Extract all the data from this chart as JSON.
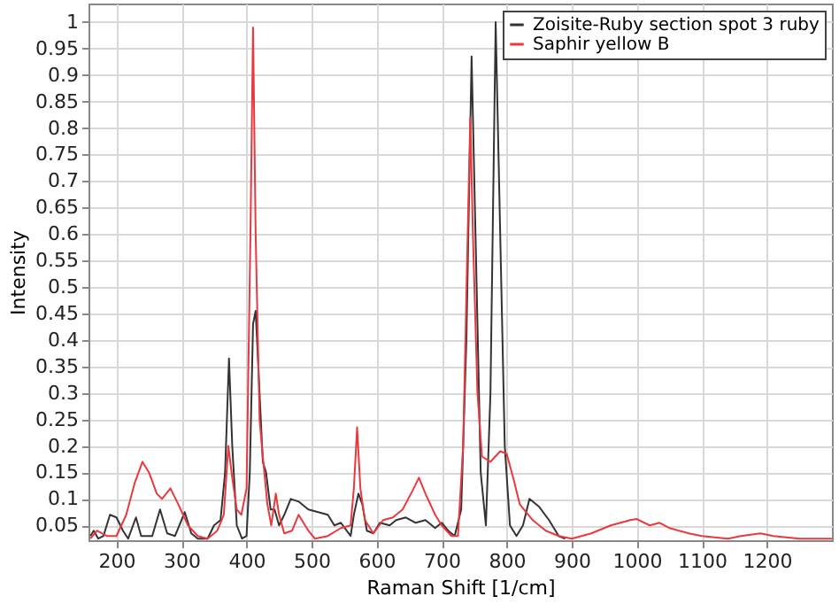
{
  "chart_data": {
    "type": "line",
    "xlabel": "Raman Shift [1/cm]",
    "ylabel": "Intensity",
    "xlim": [
      157,
      1300
    ],
    "ylim": [
      0.022,
      1.035
    ],
    "xticks": [
      200,
      300,
      400,
      500,
      600,
      700,
      800,
      900,
      1000,
      1100,
      1200
    ],
    "yticks": [
      0.05,
      0.1,
      0.15,
      0.2,
      0.25,
      0.3,
      0.35,
      0.4,
      0.45,
      0.5,
      0.55,
      0.6,
      0.65,
      0.7,
      0.75,
      0.8,
      0.85,
      0.9,
      0.95,
      1
    ],
    "grid": true,
    "legend": "top right",
    "line_style": "solid",
    "marker": "none",
    "series": [
      {
        "name": "Zoisite-Ruby section spot 3 ruby",
        "color": "#333333",
        "x": [
          160,
          165,
          172,
          180,
          190,
          200,
          210,
          218,
          230,
          238,
          255,
          267,
          278,
          290,
          305,
          315,
          325,
          340,
          350,
          360,
          367,
          373,
          378,
          385,
          393,
          400,
          405,
          410,
          414,
          420,
          425,
          430,
          437,
          443,
          450,
          458,
          468,
          480,
          495,
          510,
          525,
          535,
          545,
          560,
          565,
          572,
          578,
          585,
          595,
          605,
          620,
          630,
          645,
          660,
          675,
          690,
          700,
          710,
          720,
          730,
          738,
          746,
          752,
          760,
          768,
          775,
          783,
          790,
          797,
          805,
          815,
          825,
          835,
          850,
          865,
          880,
          890
        ],
        "values": [
          0.03,
          0.04,
          0.025,
          0.03,
          0.07,
          0.065,
          0.04,
          0.025,
          0.065,
          0.03,
          0.03,
          0.08,
          0.035,
          0.03,
          0.075,
          0.035,
          0.025,
          0.025,
          0.05,
          0.06,
          0.15,
          0.365,
          0.2,
          0.05,
          0.025,
          0.03,
          0.15,
          0.43,
          0.455,
          0.3,
          0.17,
          0.15,
          0.08,
          0.08,
          0.05,
          0.07,
          0.1,
          0.095,
          0.08,
          0.075,
          0.07,
          0.05,
          0.055,
          0.03,
          0.07,
          0.11,
          0.09,
          0.04,
          0.035,
          0.055,
          0.05,
          0.06,
          0.065,
          0.055,
          0.06,
          0.045,
          0.055,
          0.04,
          0.03,
          0.08,
          0.4,
          0.935,
          0.6,
          0.15,
          0.05,
          0.3,
          1.0,
          0.6,
          0.2,
          0.05,
          0.03,
          0.05,
          0.1,
          0.085,
          0.06,
          0.03,
          0.025
        ]
      },
      {
        "name": "Saphir yellow B",
        "color": "#e8393f",
        "x": [
          160,
          170,
          185,
          200,
          215,
          228,
          240,
          250,
          262,
          270,
          283,
          295,
          310,
          325,
          340,
          355,
          365,
          372,
          378,
          385,
          392,
          400,
          406,
          410,
          414,
          420,
          425,
          432,
          438,
          445,
          450,
          458,
          470,
          480,
          495,
          505,
          525,
          545,
          560,
          565,
          570,
          575,
          582,
          595,
          610,
          625,
          640,
          655,
          665,
          675,
          690,
          700,
          715,
          725,
          733,
          740,
          744,
          748,
          755,
          762,
          775,
          790,
          800,
          810,
          820,
          840,
          860,
          880,
          900,
          930,
          960,
          990,
          1000,
          1020,
          1035,
          1050,
          1080,
          1100,
          1140,
          1160,
          1190,
          1210,
          1250,
          1300
        ],
        "values": [
          0.025,
          0.04,
          0.03,
          0.03,
          0.07,
          0.13,
          0.17,
          0.15,
          0.11,
          0.1,
          0.12,
          0.09,
          0.05,
          0.03,
          0.025,
          0.04,
          0.07,
          0.2,
          0.14,
          0.08,
          0.07,
          0.12,
          0.6,
          0.99,
          0.6,
          0.25,
          0.18,
          0.09,
          0.05,
          0.11,
          0.07,
          0.035,
          0.04,
          0.07,
          0.04,
          0.025,
          0.03,
          0.045,
          0.05,
          0.12,
          0.235,
          0.12,
          0.06,
          0.035,
          0.06,
          0.065,
          0.08,
          0.115,
          0.14,
          0.11,
          0.07,
          0.05,
          0.03,
          0.03,
          0.2,
          0.6,
          0.82,
          0.6,
          0.3,
          0.18,
          0.17,
          0.19,
          0.185,
          0.14,
          0.09,
          0.06,
          0.04,
          0.03,
          0.025,
          0.035,
          0.05,
          0.06,
          0.062,
          0.05,
          0.055,
          0.045,
          0.035,
          0.03,
          0.025,
          0.03,
          0.035,
          0.03,
          0.025,
          0.025
        ]
      }
    ]
  }
}
